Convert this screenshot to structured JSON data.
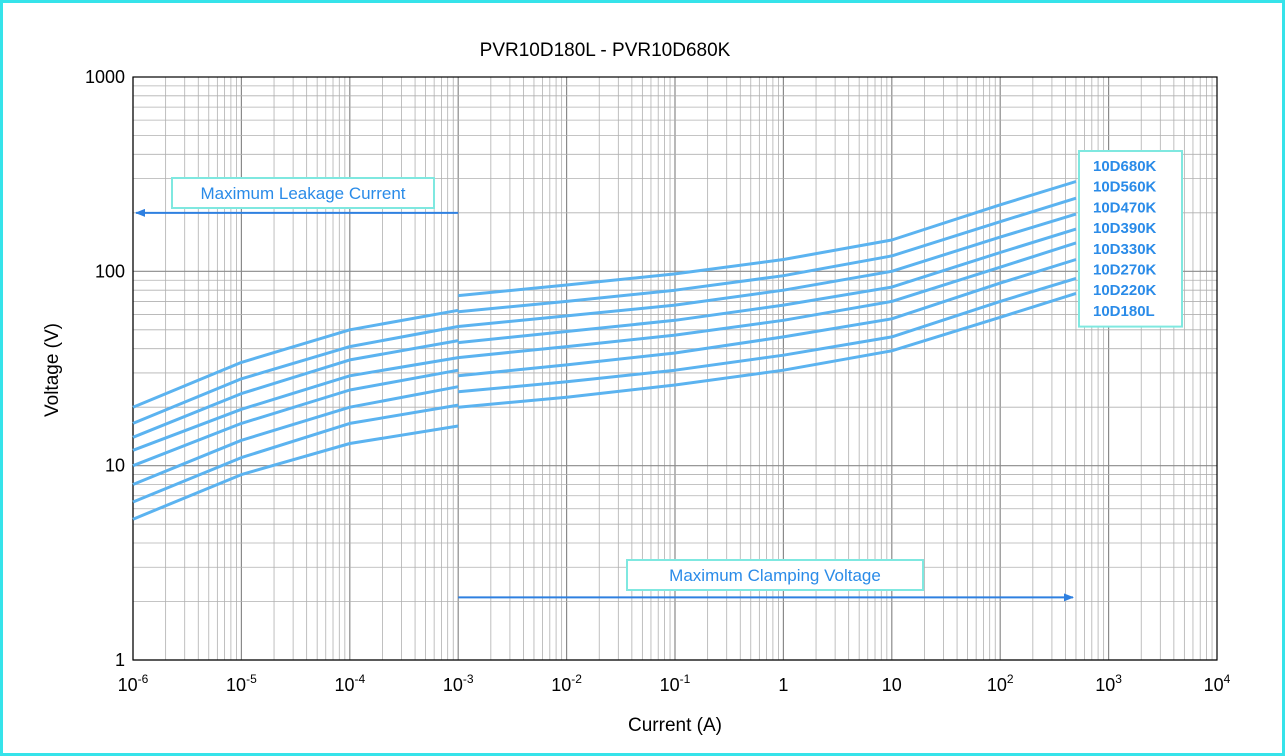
{
  "colors": {
    "frame": "#35e3ea",
    "curve": "#5bb3f0",
    "note_text": "#2a8be8",
    "arrow": "#2f80e0",
    "box_border": "#7fe8e0",
    "grid": "#b0b0b0"
  },
  "chart_data": {
    "type": "line",
    "title": "PVR10D180L - PVR10D680K",
    "xlabel": "Current (A)",
    "ylabel": "Voltage (V)",
    "xscale": "log",
    "yscale": "log",
    "xlim": [
      1e-06,
      10000
    ],
    "ylim": [
      1,
      1000
    ],
    "grid": true,
    "x_ticks": [
      {
        "value": 1e-06,
        "base": "10",
        "exp": "-6"
      },
      {
        "value": 1e-05,
        "base": "10",
        "exp": "-5"
      },
      {
        "value": 0.0001,
        "base": "10",
        "exp": "-4"
      },
      {
        "value": 0.001,
        "base": "10",
        "exp": "-3"
      },
      {
        "value": 0.01,
        "base": "10",
        "exp": "-2"
      },
      {
        "value": 0.1,
        "base": "10",
        "exp": "-1"
      },
      {
        "value": 1,
        "base": "1",
        "exp": ""
      },
      {
        "value": 10,
        "base": "10",
        "exp": ""
      },
      {
        "value": 100,
        "base": "10",
        "exp": "2"
      },
      {
        "value": 1000,
        "base": "10",
        "exp": "3"
      },
      {
        "value": 10000,
        "base": "10",
        "exp": "4"
      }
    ],
    "y_ticks": [
      {
        "value": 1,
        "label": "1"
      },
      {
        "value": 10,
        "label": "10"
      },
      {
        "value": 100,
        "label": "100"
      },
      {
        "value": 1000,
        "label": "1000"
      }
    ],
    "legend_position": "right",
    "annotations": [
      {
        "name": "leakage",
        "text": "Maximum Leakage Current",
        "arrow_from": 0.001,
        "arrow_to": 1e-06,
        "arrow_y": 200
      },
      {
        "name": "clamping",
        "text": "Maximum Clamping Voltage",
        "arrow_from": 0.001,
        "arrow_to": 500,
        "arrow_y": 2.1
      }
    ],
    "series": [
      {
        "name": "10D680K",
        "leakage": {
          "x": [
            1e-06,
            1e-05,
            0.0001,
            0.001
          ],
          "y": [
            20,
            34,
            50,
            63
          ]
        },
        "clamping": {
          "x": [
            0.001,
            0.01,
            0.1,
            1,
            10,
            100,
            500
          ],
          "y": [
            75,
            85,
            97,
            115,
            145,
            220,
            290
          ]
        }
      },
      {
        "name": "10D560K",
        "leakage": {
          "x": [
            1e-06,
            1e-05,
            0.0001,
            0.001
          ],
          "y": [
            16.5,
            28,
            41,
            52
          ]
        },
        "clamping": {
          "x": [
            0.001,
            0.01,
            0.1,
            1,
            10,
            100,
            500
          ],
          "y": [
            62,
            70,
            80,
            95,
            120,
            180,
            238
          ]
        }
      },
      {
        "name": "10D470K",
        "leakage": {
          "x": [
            1e-06,
            1e-05,
            0.0001,
            0.001
          ],
          "y": [
            14,
            23.5,
            35,
            44
          ]
        },
        "clamping": {
          "x": [
            0.001,
            0.01,
            0.1,
            1,
            10,
            100,
            500
          ],
          "y": [
            52,
            59,
            67,
            80,
            100,
            150,
            197
          ]
        }
      },
      {
        "name": "10D390K",
        "leakage": {
          "x": [
            1e-06,
            1e-05,
            0.0001,
            0.001
          ],
          "y": [
            12,
            19.5,
            29,
            36
          ]
        },
        "clamping": {
          "x": [
            0.001,
            0.01,
            0.1,
            1,
            10,
            100,
            500
          ],
          "y": [
            43,
            49,
            56,
            67,
            83,
            125,
            165
          ]
        }
      },
      {
        "name": "10D330K",
        "leakage": {
          "x": [
            1e-06,
            1e-05,
            0.0001,
            0.001
          ],
          "y": [
            10,
            16.5,
            24.5,
            31
          ]
        },
        "clamping": {
          "x": [
            0.001,
            0.01,
            0.1,
            1,
            10,
            100,
            500
          ],
          "y": [
            36,
            41,
            47,
            56,
            70,
            105,
            140
          ]
        }
      },
      {
        "name": "10D270K",
        "leakage": {
          "x": [
            1e-06,
            1e-05,
            0.0001,
            0.001
          ],
          "y": [
            8,
            13.5,
            20,
            25.5
          ]
        },
        "clamping": {
          "x": [
            0.001,
            0.01,
            0.1,
            1,
            10,
            100,
            500
          ],
          "y": [
            29,
            33,
            38,
            46,
            57,
            87,
            115
          ]
        }
      },
      {
        "name": "10D220K",
        "leakage": {
          "x": [
            1e-06,
            1e-05,
            0.0001,
            0.001
          ],
          "y": [
            6.5,
            11,
            16.5,
            20.5
          ]
        },
        "clamping": {
          "x": [
            0.001,
            0.01,
            0.1,
            1,
            10,
            100,
            500
          ],
          "y": [
            24,
            27,
            31,
            37,
            46,
            70,
            92
          ]
        }
      },
      {
        "name": "10D180L",
        "leakage": {
          "x": [
            1e-06,
            1e-05,
            0.0001,
            0.001
          ],
          "y": [
            5.3,
            9,
            13,
            16
          ]
        },
        "clamping": {
          "x": [
            0.001,
            0.01,
            0.1,
            1,
            10,
            100,
            500
          ],
          "y": [
            20,
            22.5,
            26,
            31,
            39,
            58,
            77
          ]
        }
      }
    ]
  }
}
